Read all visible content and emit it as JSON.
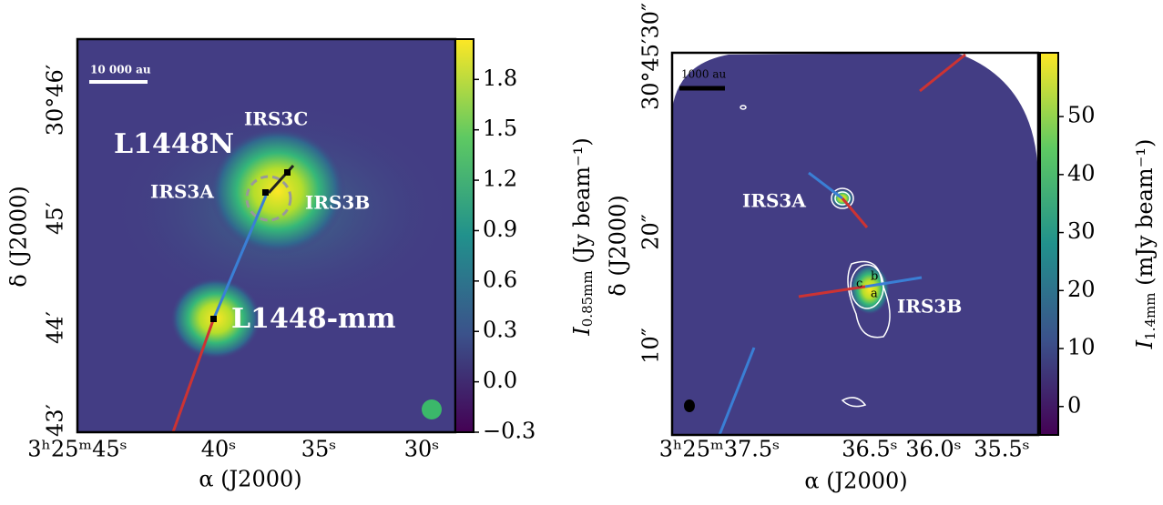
{
  "panels": [
    {
      "x_axis": {
        "title": "α (J2000)",
        "ticks": [
          "3ʰ25ᵐ45ˢ",
          "40ˢ",
          "35ˢ",
          "30ˢ"
        ]
      },
      "y_axis": {
        "title": "δ (J2000)",
        "ticks": [
          "30°46′",
          "45′",
          "44′",
          "43′"
        ]
      },
      "colorbar": {
        "label": {
          "symbol": "I",
          "subscript": "0.85mm",
          "unit": " (Jy beam⁻¹)"
        },
        "lim": [
          -0.3,
          2.04
        ],
        "ticks": [
          {
            "value": -0.3,
            "label": "−0.3"
          },
          {
            "value": 0,
            "label": "0.0"
          },
          0.3,
          0.6,
          0.9,
          1.2,
          1.5,
          1.8
        ]
      },
      "scale_bar": "10 000 au",
      "labels": [
        "L1448N",
        "IRS3C",
        "IRS3A",
        "IRS3B",
        "L1448-mm"
      ]
    },
    {
      "x_axis": {
        "title": "α (J2000)",
        "ticks": [
          "3ʰ25ᵐ37.5ˢ",
          "36.5ˢ",
          "36.0ˢ",
          "35.5ˢ"
        ]
      },
      "y_axis": {
        "title": "δ (J2000)",
        "ticks": [
          "30°45′30″",
          "20″",
          "10″"
        ]
      },
      "colorbar": {
        "label": {
          "symbol": "I",
          "subscript": "1.4mm",
          "unit": " (mJy beam⁻¹)"
        },
        "lim": [
          -4.9,
          61
        ],
        "ticks": [
          0,
          10,
          20,
          30,
          40,
          50
        ]
      },
      "scale_bar": "1000 au",
      "labels": [
        "IRS3A",
        "IRS3B",
        "c",
        "b",
        "a"
      ]
    }
  ]
}
